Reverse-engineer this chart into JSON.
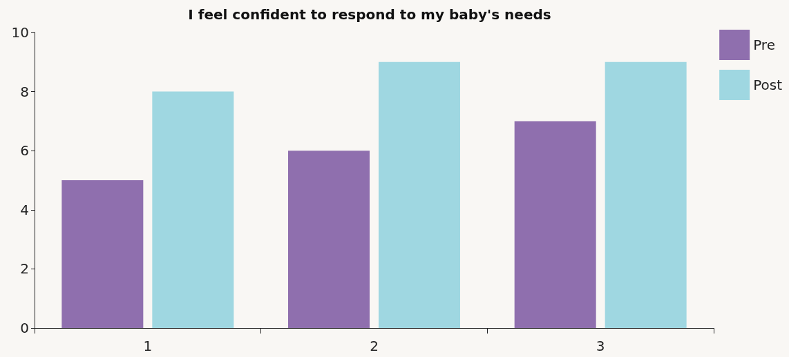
{
  "chart_data": {
    "type": "bar",
    "title": "I feel confident to respond to my baby's needs",
    "categories": [
      "1",
      "2",
      "3"
    ],
    "series": [
      {
        "name": "Pre",
        "color": "#8f6fae",
        "values": [
          5,
          6,
          7
        ]
      },
      {
        "name": "Post",
        "color": "#9fd7e1",
        "values": [
          8,
          9,
          9
        ]
      }
    ],
    "ylim": [
      0,
      10
    ],
    "yticks": [
      0,
      2,
      4,
      6,
      8,
      10
    ],
    "grid": false,
    "legend": "top right"
  }
}
